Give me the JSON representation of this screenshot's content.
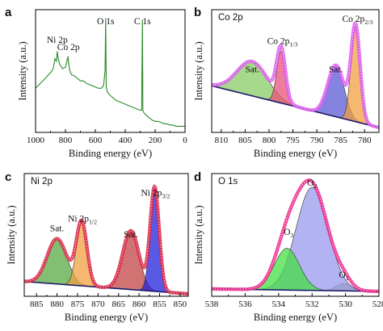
{
  "chart_data": [
    {
      "id": "a",
      "type": "line",
      "panel_letter": "a",
      "xlabel": "Binding energy (eV)",
      "ylabel": "Intensity (a.u.)",
      "xlim": [
        1000,
        0
      ],
      "xticks": [
        "1000",
        "800",
        "600",
        "400",
        "200",
        "0"
      ],
      "annotations": [
        {
          "text": "Ni 2p",
          "x": 855
        },
        {
          "text": "Co 2p",
          "x": 780
        },
        {
          "text": "O 1s",
          "x": 531
        },
        {
          "text": "C 1s",
          "x": 285
        }
      ],
      "series": [
        {
          "color": "#2a8a2a",
          "x": [
            1000,
            960,
            920,
            890,
            880,
            870,
            860,
            855,
            850,
            840,
            820,
            800,
            790,
            782,
            778,
            770,
            760,
            740,
            720,
            700,
            680,
            660,
            640,
            620,
            600,
            580,
            560,
            545,
            535,
            531,
            527,
            520,
            500,
            480,
            460,
            440,
            420,
            400,
            380,
            360,
            340,
            320,
            300,
            290,
            285,
            282,
            275,
            260,
            240,
            220,
            200,
            180,
            160,
            140,
            120,
            100,
            80,
            60,
            40,
            20,
            0
          ],
          "y": [
            0.36,
            0.41,
            0.46,
            0.5,
            0.53,
            0.6,
            0.58,
            0.66,
            0.61,
            0.56,
            0.52,
            0.53,
            0.58,
            0.62,
            0.55,
            0.5,
            0.47,
            0.46,
            0.44,
            0.42,
            0.42,
            0.4,
            0.39,
            0.38,
            0.37,
            0.36,
            0.36,
            0.38,
            0.5,
            0.93,
            0.37,
            0.33,
            0.3,
            0.28,
            0.26,
            0.25,
            0.24,
            0.23,
            0.22,
            0.21,
            0.2,
            0.19,
            0.18,
            0.18,
            0.92,
            0.18,
            0.16,
            0.14,
            0.12,
            0.1,
            0.09,
            0.09,
            0.08,
            0.07,
            0.07,
            0.06,
            0.06,
            0.05,
            0.05,
            0.05,
            0.05
          ]
        }
      ]
    },
    {
      "id": "b",
      "type": "area",
      "panel_letter": "b",
      "panel_title": "Co 2p",
      "xlabel": "Binding energy (eV)",
      "ylabel": "Intensity (a.u.)",
      "xlim": [
        812,
        777
      ],
      "xticks": [
        "810",
        "805",
        "800",
        "795",
        "790",
        "785",
        "780"
      ],
      "annotations": [
        {
          "text": "Sat.",
          "x": 803.5
        },
        {
          "text": "Co 2p",
          "sub": "1/3",
          "x": 797.2
        },
        {
          "text": "Sat.",
          "x": 786
        },
        {
          "text": "Co 2p",
          "sub": "2/3",
          "x": 781.5
        }
      ],
      "baseline": [
        [
          812,
          0.38
        ],
        [
          777,
          0.04
        ]
      ],
      "peaks": [
        {
          "center": 803.5,
          "height": 0.28,
          "width": 3.2,
          "color": "#88cc66"
        },
        {
          "center": 797.5,
          "height": 0.42,
          "width": 0.9,
          "color": "#e8507a"
        },
        {
          "center": 786.0,
          "height": 0.42,
          "width": 1.7,
          "color": "#5b5bd6"
        },
        {
          "center": 781.9,
          "height": 0.78,
          "width": 0.95,
          "color": "#f0a040"
        }
      ],
      "envelope_color": "#dd55ee"
    },
    {
      "id": "c",
      "type": "area",
      "panel_letter": "c",
      "panel_title": "Ni 2p",
      "xlabel": "Binding energy (eV)",
      "ylabel": "Intensity (a.u.)",
      "xlim": [
        888,
        848
      ],
      "xticks": [
        "885",
        "880",
        "875",
        "870",
        "865",
        "860",
        "855",
        "850"
      ],
      "annotations": [
        {
          "text": "Sat.",
          "x": 880
        },
        {
          "text": "Ni 2p",
          "sub": "1/2",
          "x": 873.8
        },
        {
          "text": "Sat.",
          "x": 862
        },
        {
          "text": "Ni 2p",
          "sub": "3/2",
          "x": 856
        }
      ],
      "baseline": [
        [
          888,
          0.12
        ],
        [
          848,
          0.02
        ]
      ],
      "peaks": [
        {
          "center": 880.0,
          "height": 0.37,
          "width": 2.4,
          "color": "#5aaa44"
        },
        {
          "center": 874.0,
          "height": 0.52,
          "width": 1.3,
          "color": "#f0a040"
        },
        {
          "center": 862.0,
          "height": 0.48,
          "width": 2.0,
          "color": "#c24444"
        },
        {
          "center": 856.2,
          "height": 0.85,
          "width": 1.1,
          "color": "#2222dd"
        }
      ],
      "envelope_color": "#dd2244"
    },
    {
      "id": "d",
      "type": "area",
      "panel_letter": "d",
      "panel_title": "O 1s",
      "xlabel": "Binding energy (eV)",
      "ylabel": "Intensity (a.u.)",
      "xlim": [
        538,
        528
      ],
      "xticks": [
        "538",
        "536",
        "534",
        "532",
        "530",
        "528"
      ],
      "annotations": [
        {
          "text": "O",
          "sub": "1",
          "x": 530.1
        },
        {
          "text": "O",
          "sub": "2",
          "x": 532.0
        },
        {
          "text": "O",
          "sub": "3",
          "x": 533.4
        }
      ],
      "baseline": [
        [
          538,
          0.06
        ],
        [
          528,
          0.04
        ]
      ],
      "peaks": [
        {
          "center": 530.1,
          "height": 0.06,
          "width": 0.45,
          "color": "#99a866"
        },
        {
          "center": 532.0,
          "height": 0.84,
          "width": 0.95,
          "color": "#9a9aee"
        },
        {
          "center": 533.5,
          "height": 0.34,
          "width": 0.75,
          "color": "#44dd44"
        }
      ],
      "envelope_color": "#ee2288"
    }
  ]
}
